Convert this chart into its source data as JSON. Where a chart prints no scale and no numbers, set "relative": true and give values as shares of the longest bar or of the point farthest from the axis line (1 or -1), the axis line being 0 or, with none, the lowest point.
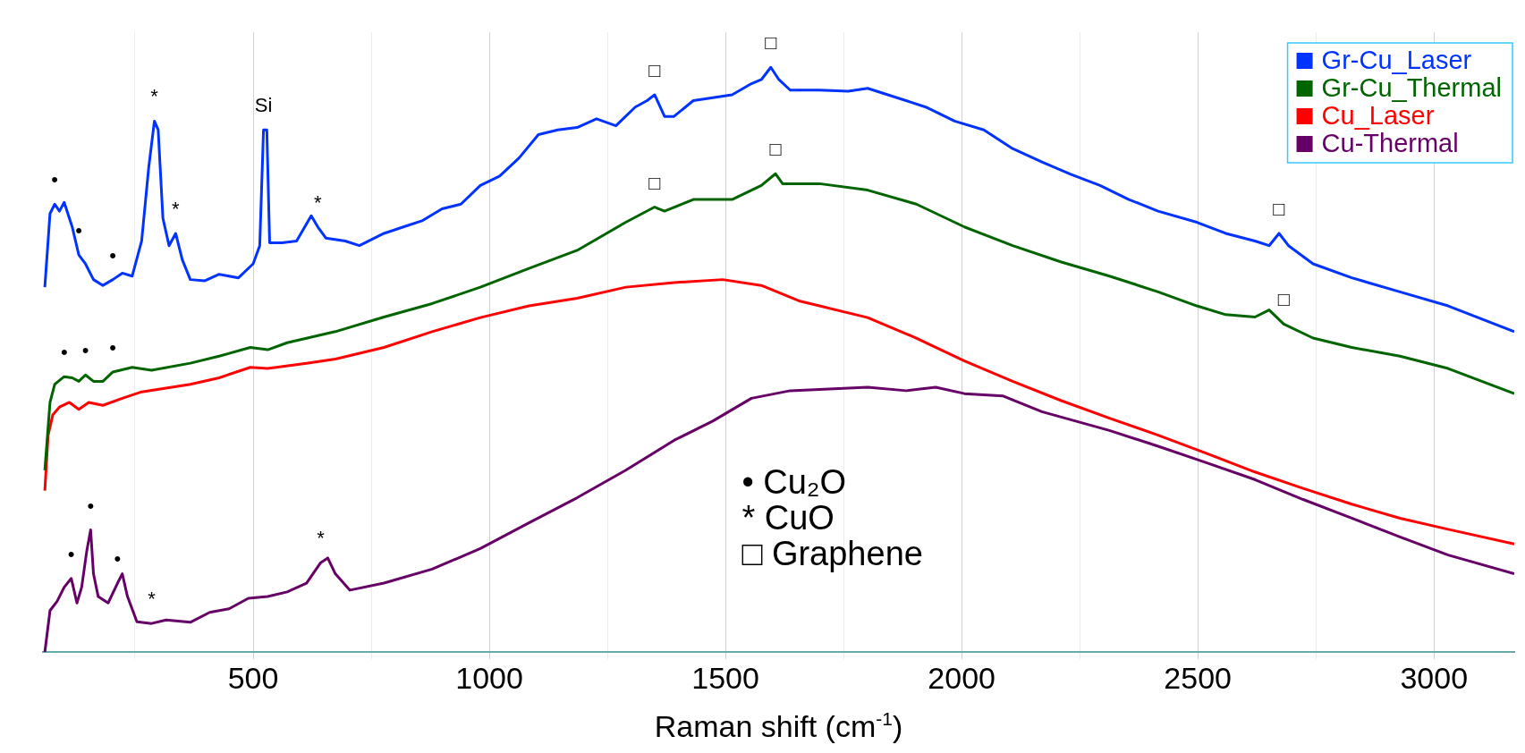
{
  "chart_data": {
    "type": "line",
    "relative": true,
    "xlabel": "Raman shift (cm$^{-1}$)",
    "xlim": [
      55,
      3170
    ],
    "xticks": [
      {
        "value": 250,
        "label": null
      },
      500,
      {
        "value": 750,
        "label": null
      },
      1000,
      {
        "value": 1250,
        "label": null
      },
      1500,
      {
        "value": 1750,
        "label": null
      },
      2000,
      {
        "value": 2250,
        "label": null
      },
      2500,
      {
        "value": 2750,
        "label": null
      },
      3000
    ],
    "grid": "x",
    "legend": "top right",
    "marker": "none",
    "line_style": "solid",
    "series": [
      {
        "name": "Gr-Cu_Laser",
        "color": "#0033ff",
        "x": [
          59,
          70,
          80,
          90,
          100,
          117,
          131,
          145,
          162,
          182,
          203,
          223,
          244,
          264,
          279,
          291,
          299,
          309,
          322,
          336,
          350,
          367,
          398,
          428,
          469,
          500,
          514,
          522,
          529,
          535,
          561,
          592,
          623,
          637,
          654,
          695,
          725,
          777,
          818,
          859,
          900,
          940,
          981,
          1022,
          1063,
          1104,
          1145,
          1186,
          1227,
          1268,
          1309,
          1334,
          1350,
          1371,
          1391,
          1432,
          1473,
          1514,
          1555,
          1576,
          1596,
          1613,
          1637,
          1699,
          1760,
          1801,
          1863,
          1924,
          1985,
          2047,
          2108,
          2170,
          2231,
          2293,
          2354,
          2416,
          2498,
          2559,
          2621,
          2651,
          2672,
          2692,
          2744,
          2826,
          2928,
          3030,
          3170
        ],
        "values": [
          0.624,
          0.75,
          0.766,
          0.754,
          0.769,
          0.727,
          0.679,
          0.664,
          0.637,
          0.627,
          0.637,
          0.648,
          0.643,
          0.703,
          0.829,
          0.908,
          0.893,
          0.742,
          0.695,
          0.716,
          0.671,
          0.637,
          0.635,
          0.646,
          0.64,
          0.664,
          0.695,
          0.893,
          0.893,
          0.7,
          0.7,
          0.703,
          0.746,
          0.727,
          0.708,
          0.703,
          0.695,
          0.716,
          0.727,
          0.738,
          0.758,
          0.766,
          0.798,
          0.814,
          0.845,
          0.885,
          0.893,
          0.897,
          0.912,
          0.9,
          0.932,
          0.943,
          0.953,
          0.916,
          0.916,
          0.943,
          0.948,
          0.953,
          0.972,
          0.979,
          1.0,
          0.979,
          0.961,
          0.961,
          0.959,
          0.964,
          0.948,
          0.932,
          0.908,
          0.893,
          0.861,
          0.838,
          0.817,
          0.798,
          0.774,
          0.754,
          0.735,
          0.716,
          0.703,
          0.695,
          0.716,
          0.695,
          0.664,
          0.64,
          0.616,
          0.592,
          0.548
        ]
      },
      {
        "name": "Gr-Cu_Thermal",
        "color": "#006400",
        "x": [
          59,
          70,
          80,
          100,
          117,
          131,
          145,
          162,
          182,
          203,
          244,
          285,
          367,
          428,
          494,
          531,
          572,
          674,
          777,
          879,
          981,
          1084,
          1186,
          1289,
          1350,
          1371,
          1432,
          1514,
          1576,
          1606,
          1621,
          1699,
          1801,
          1904,
          2006,
          2108,
          2211,
          2313,
          2416,
          2498,
          2559,
          2621,
          2651,
          2682,
          2744,
          2826,
          2928,
          3030,
          3170
        ],
        "values": [
          0.311,
          0.427,
          0.458,
          0.471,
          0.469,
          0.463,
          0.474,
          0.463,
          0.463,
          0.479,
          0.487,
          0.482,
          0.494,
          0.506,
          0.521,
          0.517,
          0.529,
          0.548,
          0.573,
          0.596,
          0.624,
          0.656,
          0.687,
          0.735,
          0.761,
          0.754,
          0.774,
          0.774,
          0.798,
          0.818,
          0.801,
          0.801,
          0.79,
          0.766,
          0.727,
          0.695,
          0.667,
          0.643,
          0.616,
          0.592,
          0.577,
          0.573,
          0.585,
          0.561,
          0.537,
          0.521,
          0.506,
          0.485,
          0.442
        ]
      },
      {
        "name": "Cu_Laser",
        "color": "#ff0000",
        "x": [
          59,
          66,
          76,
          90,
          111,
          131,
          152,
          182,
          223,
          264,
          367,
          428,
          494,
          531,
          613,
          674,
          777,
          879,
          981,
          1084,
          1186,
          1289,
          1391,
          1494,
          1576,
          1658,
          1801,
          1904,
          2006,
          2108,
          2211,
          2313,
          2416,
          2518,
          2621,
          2723,
          2826,
          2928,
          3030,
          3170
        ],
        "values": [
          0.276,
          0.371,
          0.406,
          0.419,
          0.427,
          0.415,
          0.427,
          0.422,
          0.434,
          0.445,
          0.458,
          0.469,
          0.487,
          0.485,
          0.494,
          0.501,
          0.521,
          0.548,
          0.572,
          0.592,
          0.605,
          0.624,
          0.632,
          0.637,
          0.627,
          0.6,
          0.572,
          0.537,
          0.498,
          0.463,
          0.43,
          0.4,
          0.371,
          0.34,
          0.308,
          0.28,
          0.253,
          0.229,
          0.21,
          0.185
        ]
      },
      {
        "name": "Cu-Thermal",
        "color": "#660066",
        "x": [
          59,
          70,
          85,
          100,
          115,
          127,
          137,
          148,
          156,
          162,
          172,
          193,
          213,
          223,
          234,
          254,
          285,
          316,
          367,
          408,
          449,
          490,
          531,
          572,
          613,
          643,
          658,
          674,
          705,
          777,
          879,
          981,
          1084,
          1186,
          1289,
          1391,
          1473,
          1555,
          1637,
          1719,
          1801,
          1883,
          1945,
          2006,
          2088,
          2170,
          2313,
          2416,
          2518,
          2621,
          2723,
          2826,
          2928,
          3030,
          3170
        ],
        "values": [
          0,
          0.071,
          0.087,
          0.111,
          0.126,
          0.084,
          0.111,
          0.174,
          0.209,
          0.134,
          0.095,
          0.084,
          0.118,
          0.134,
          0.095,
          0.052,
          0.049,
          0.055,
          0.051,
          0.068,
          0.074,
          0.092,
          0.095,
          0.103,
          0.118,
          0.153,
          0.161,
          0.134,
          0.106,
          0.118,
          0.142,
          0.177,
          0.221,
          0.264,
          0.311,
          0.362,
          0.395,
          0.434,
          0.447,
          0.45,
          0.453,
          0.447,
          0.453,
          0.442,
          0.438,
          0.411,
          0.379,
          0.352,
          0.324,
          0.295,
          0.261,
          0.229,
          0.197,
          0.166,
          0.134
        ]
      }
    ],
    "annotations": [
      {
        "text": "•",
        "x": 80,
        "y": 0.766
      },
      {
        "text": "•",
        "x": 131,
        "y": 0.679
      },
      {
        "text": "•",
        "x": 203,
        "y": 0.637
      },
      {
        "text": "*",
        "x": 291,
        "y": 0.908
      },
      {
        "text": "*",
        "x": 336,
        "y": 0.716
      },
      {
        "text": "Si",
        "x": 522,
        "y": 0.893
      },
      {
        "text": "*",
        "x": 637,
        "y": 0.727
      },
      {
        "text": "□",
        "x": 1350,
        "y": 0.953
      },
      {
        "text": "□",
        "x": 1596,
        "y": 1.0
      },
      {
        "text": "□",
        "x": 2672,
        "y": 0.716
      },
      {
        "text": "•",
        "x": 100,
        "y": 0.471
      },
      {
        "text": "•",
        "x": 145,
        "y": 0.474
      },
      {
        "text": "•",
        "x": 203,
        "y": 0.479
      },
      {
        "text": "□",
        "x": 1350,
        "y": 0.761
      },
      {
        "text": "□",
        "x": 1606,
        "y": 0.818
      },
      {
        "text": "□",
        "x": 2682,
        "y": 0.561
      },
      {
        "text": "•",
        "x": 115,
        "y": 0.126
      },
      {
        "text": "•",
        "x": 156,
        "y": 0.209
      },
      {
        "text": "•",
        "x": 213,
        "y": 0.118
      },
      {
        "text": "*",
        "x": 285,
        "y": 0.049
      },
      {
        "text": "*",
        "x": 643,
        "y": 0.153
      },
      "• Cu₂O",
      "* CuO",
      "□ Graphene"
    ]
  }
}
